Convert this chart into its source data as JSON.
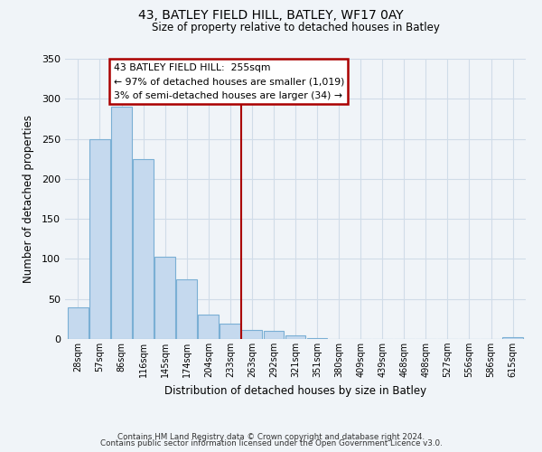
{
  "title": "43, BATLEY FIELD HILL, BATLEY, WF17 0AY",
  "subtitle": "Size of property relative to detached houses in Batley",
  "xlabel": "Distribution of detached houses by size in Batley",
  "ylabel": "Number of detached properties",
  "bar_color": "#c5d9ee",
  "bar_edge_color": "#7aafd4",
  "bin_labels": [
    "28sqm",
    "57sqm",
    "86sqm",
    "116sqm",
    "145sqm",
    "174sqm",
    "204sqm",
    "233sqm",
    "263sqm",
    "292sqm",
    "321sqm",
    "351sqm",
    "380sqm",
    "409sqm",
    "439sqm",
    "468sqm",
    "498sqm",
    "527sqm",
    "556sqm",
    "586sqm",
    "615sqm"
  ],
  "bar_heights": [
    39,
    250,
    290,
    225,
    103,
    75,
    30,
    19,
    11,
    10,
    4,
    1,
    0,
    0,
    0,
    0,
    0,
    0,
    0,
    0,
    2
  ],
  "vline_color": "#aa0000",
  "annotation_title": "43 BATLEY FIELD HILL:  255sqm",
  "annotation_line1": "← 97% of detached houses are smaller (1,019)",
  "annotation_line2": "3% of semi-detached houses are larger (34) →",
  "annotation_box_facecolor": "white",
  "annotation_box_edgecolor": "#aa0000",
  "ylim": [
    0,
    350
  ],
  "yticks": [
    0,
    50,
    100,
    150,
    200,
    250,
    300,
    350
  ],
  "grid_color": "#d0dce8",
  "footer1": "Contains HM Land Registry data © Crown copyright and database right 2024.",
  "footer2": "Contains public sector information licensed under the Open Government Licence v3.0.",
  "bg_color": "#f0f4f8"
}
